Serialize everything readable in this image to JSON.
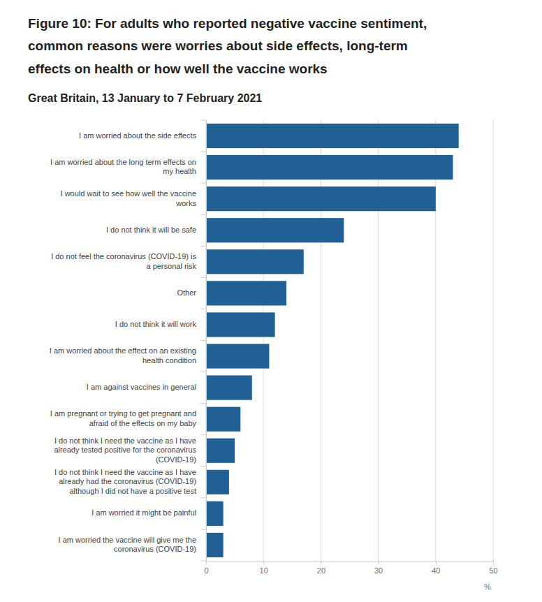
{
  "chart_data": {
    "type": "bar",
    "orientation": "horizontal",
    "title": "Figure 10: For adults who reported negative vaccine sentiment, common reasons were worries about side effects, long-term effects on health or how well the vaccine works",
    "subtitle": "Great Britain, 13 January to 7 February 2021",
    "xlabel": "%",
    "categories": [
      "I am worried about the side effects",
      "I am worried about the long term effects on my health",
      "I would wait to see how well the vaccine works",
      "I do not think it will be safe",
      "I do not feel the coronavirus (COVID-19) is a personal risk",
      "Other",
      "I do not think it will work",
      "I am worried about the effect on an existing health condition",
      "I am against vaccines in general",
      "I am pregnant or trying to get pregnant and afraid of the effects on my baby",
      "I do not think I need the vaccine as I have already tested positive for the coronavirus (COVID-19)",
      "I do not think I need the vaccine as I have already had the coronavirus (COVID-19) although I did not have a positive test",
      "I am worried it might be painful",
      "I am worried the vaccine will give me the coronavirus (COVID-19)"
    ],
    "values": [
      44,
      43,
      40,
      24,
      17,
      14,
      12,
      11,
      8,
      6,
      5,
      4,
      3,
      3
    ],
    "color": "#206095",
    "xlim": [
      0,
      50
    ],
    "xticks": [
      0,
      10,
      20,
      30,
      40,
      50
    ],
    "grid": true
  }
}
